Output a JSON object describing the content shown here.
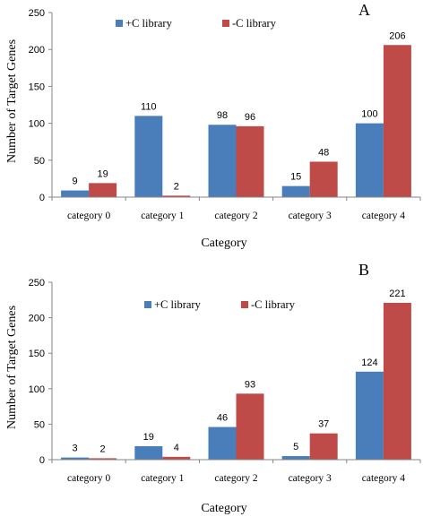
{
  "colors": {
    "plus_c": "#4a7ebb",
    "minus_c": "#be4b48"
  },
  "chart_data": [
    {
      "type": "bar",
      "panel": "A",
      "categories": [
        "category 0",
        "category 1",
        "category 2",
        "category 3",
        "category 4"
      ],
      "series": [
        {
          "name": "+C library",
          "values": [
            9,
            110,
            98,
            15,
            100
          ]
        },
        {
          "name": "-C library",
          "values": [
            19,
            2,
            96,
            48,
            206
          ]
        }
      ],
      "xlabel": "Category",
      "ylabel": "Number of Target Genes",
      "ylim": [
        0,
        250
      ],
      "yticks": [
        "0",
        "50",
        "100",
        "150",
        "200",
        "250"
      ],
      "grid": false,
      "legend": "top-center"
    },
    {
      "type": "bar",
      "panel": "B",
      "categories": [
        "category 0",
        "category 1",
        "category 2",
        "category 3",
        "category 4"
      ],
      "series": [
        {
          "name": "+C library",
          "values": [
            3,
            19,
            46,
            5,
            124
          ]
        },
        {
          "name": "-C library",
          "values": [
            2,
            4,
            93,
            37,
            221
          ]
        }
      ],
      "xlabel": "Category",
      "ylabel": "Number of Target Genes",
      "ylim": [
        0,
        250
      ],
      "yticks": [
        "0",
        "50",
        "100",
        "150",
        "200",
        "250"
      ],
      "grid": false,
      "legend": "top-center"
    }
  ]
}
